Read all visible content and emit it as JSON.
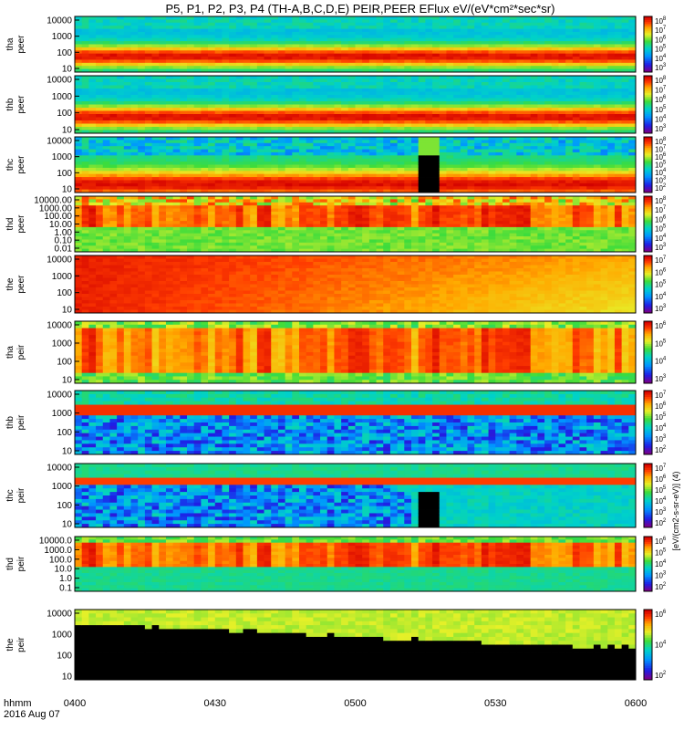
{
  "title": "P5, P1, P2, P3, P4 (TH-A,B,C,D,E) PEIR,PEER EFlux eV/(eV*cm²*sec*sr)",
  "colorbar_unit_label": "[eV/(cm2-s-sr-eV)] (4)",
  "footer": {
    "left_label": "hhmm",
    "date_label": "2016 Aug 07"
  },
  "chart_data": {
    "type": "heatmap",
    "time_axis": {
      "ticks": [
        "0400",
        "0430",
        "0500",
        "0530",
        "0600"
      ],
      "range": [
        "04:00",
        "06:00"
      ]
    },
    "panels": [
      {
        "name": "tha peer",
        "ylabel": [
          "tha",
          "peer"
        ],
        "yscale": "log",
        "ylim": [
          7,
          20000
        ],
        "yticks": [
          "10000",
          "1000",
          "100",
          "10"
        ],
        "colorbar_ticks": [
          "10^8",
          "10^7",
          "10^6",
          "10^5",
          "10^4",
          "10^3"
        ],
        "profile": "peer"
      },
      {
        "name": "thb peer",
        "ylabel": [
          "thb",
          "peer"
        ],
        "yscale": "log",
        "ylim": [
          7,
          20000
        ],
        "yticks": [
          "10000",
          "1000",
          "100",
          "10"
        ],
        "colorbar_ticks": [
          "10^8",
          "10^7",
          "10^6",
          "10^5",
          "10^4",
          "10^3"
        ],
        "profile": "peer"
      },
      {
        "name": "thc peer",
        "ylabel": [
          "thc",
          "peer"
        ],
        "yscale": "log",
        "ylim": [
          7,
          20000
        ],
        "yticks": [
          "10000",
          "1000",
          "100",
          "10"
        ],
        "colorbar_ticks": [
          "10^8",
          "10^7",
          "10^6",
          "10^5",
          "10^4",
          "10^3",
          "10^2"
        ],
        "profile": "peer_c"
      },
      {
        "name": "thd peer",
        "ylabel": [
          "thd",
          "peer"
        ],
        "yscale": "log",
        "ylim": [
          0.01,
          20000
        ],
        "yticks": [
          "10000.00",
          "1000.00",
          "100.00",
          "10.00",
          "1.00",
          "0.10",
          "0.01"
        ],
        "colorbar_ticks": [
          "10^8",
          "10^7",
          "10^6",
          "10^5",
          "10^4",
          "10^3"
        ],
        "profile": "peer_d"
      },
      {
        "name": "the peer",
        "ylabel": [
          "the",
          "peer"
        ],
        "yscale": "log",
        "ylim": [
          7,
          20000
        ],
        "yticks": [
          "10000",
          "1000",
          "100",
          "10"
        ],
        "colorbar_ticks": [
          "10^7",
          "10^6",
          "10^5",
          "10^4",
          "10^3"
        ],
        "profile": "peer_e"
      },
      {
        "name": "tha peir",
        "ylabel": [
          "tha",
          "peir"
        ],
        "yscale": "log",
        "ylim": [
          7,
          20000
        ],
        "yticks": [
          "10000",
          "1000",
          "100",
          "10"
        ],
        "colorbar_ticks": [
          "10^6",
          "10^5",
          "10^4",
          "10^3"
        ],
        "profile": "peir"
      },
      {
        "name": "thb peir",
        "ylabel": [
          "thb",
          "peir"
        ],
        "yscale": "log",
        "ylim": [
          7,
          20000
        ],
        "yticks": [
          "10000",
          "1000",
          "100",
          "10"
        ],
        "colorbar_ticks": [
          "10^7",
          "10^6",
          "10^5",
          "10^4",
          "10^3",
          "10^2"
        ],
        "profile": "peir_b"
      },
      {
        "name": "thc peir",
        "ylabel": [
          "thc",
          "peir"
        ],
        "yscale": "log",
        "ylim": [
          7,
          20000
        ],
        "yticks": [
          "10000",
          "1000",
          "100",
          "10"
        ],
        "colorbar_ticks": [
          "10^7",
          "10^6",
          "10^5",
          "10^4",
          "10^3",
          "10^2"
        ],
        "profile": "peir_c"
      },
      {
        "name": "thd peir",
        "ylabel": [
          "thd",
          "peir"
        ],
        "yscale": "log",
        "ylim": [
          0.1,
          20000
        ],
        "yticks": [
          "10000.0",
          "1000.0",
          "100.0",
          "10.0",
          "1.0",
          "0.1"
        ],
        "colorbar_ticks": [
          "10^6",
          "10^5",
          "10^4",
          "10^3",
          "10^2"
        ],
        "profile": "peir_d"
      },
      {
        "name": "the peir",
        "ylabel": [
          "the",
          "peir"
        ],
        "yscale": "log",
        "ylim": [
          7,
          20000
        ],
        "yticks": [
          "10000",
          "1000",
          "100",
          "10"
        ],
        "colorbar_ticks": [
          "10^6",
          "10^4",
          "10^2"
        ],
        "profile": "peir_e"
      }
    ]
  }
}
